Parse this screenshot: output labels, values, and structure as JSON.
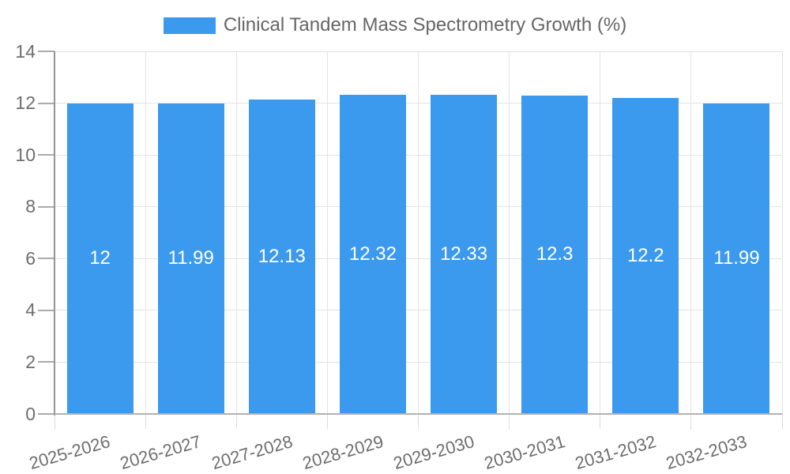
{
  "legend": {
    "title": "Clinical Tandem Mass Spectrometry Growth (%)"
  },
  "chart_data": {
    "type": "bar",
    "title": "Clinical Tandem Mass Spectrometry Growth (%)",
    "categories": [
      "2025-2026",
      "2026-2027",
      "2027-2028",
      "2028-2029",
      "2029-2030",
      "2030-2031",
      "2031-2032",
      "2032-2033"
    ],
    "values": [
      12,
      11.99,
      12.13,
      12.32,
      12.33,
      12.3,
      12.2,
      11.99
    ],
    "value_labels": [
      "12",
      "11.99",
      "12.13",
      "12.32",
      "12.33",
      "12.3",
      "12.2",
      "11.99"
    ],
    "ytick_labels": [
      "0",
      "2",
      "4",
      "6",
      "8",
      "10",
      "12",
      "14"
    ],
    "ytick_values": [
      0,
      2,
      4,
      6,
      8,
      10,
      12,
      14
    ],
    "ylim": [
      0,
      14
    ],
    "xlabel": "",
    "ylabel": "",
    "grid": true,
    "legend_position": "top",
    "colors": {
      "bar": "#3b9aee",
      "bar_value_text": "#ffffff",
      "axis_text": "#6e6e6e",
      "title_text": "#666666",
      "gridline": "#e3e3e3",
      "y_axis_line": "#949494",
      "x_axis_line": "#b2b2b2"
    }
  }
}
